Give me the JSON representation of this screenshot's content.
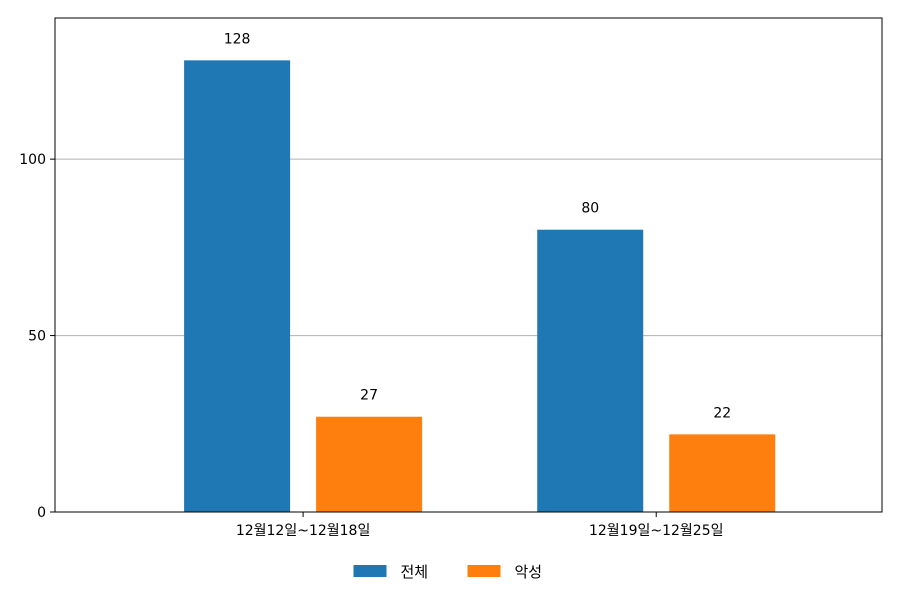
{
  "chart_data": {
    "type": "bar",
    "title": "",
    "xlabel": "",
    "ylabel": "",
    "categories": [
      "12월12일~12월18일",
      "12월19일~12월25일"
    ],
    "series": [
      {
        "name": "전체",
        "values": [
          128,
          80
        ],
        "color": "#1f77b4"
      },
      {
        "name": "악성",
        "values": [
          27,
          22
        ],
        "color": "#ff7f0e"
      }
    ],
    "ylim": [
      0,
      140
    ],
    "yticks": [
      0,
      50,
      100
    ],
    "grid": "y",
    "legend_position": "bottom-center",
    "show_data_labels": true
  }
}
